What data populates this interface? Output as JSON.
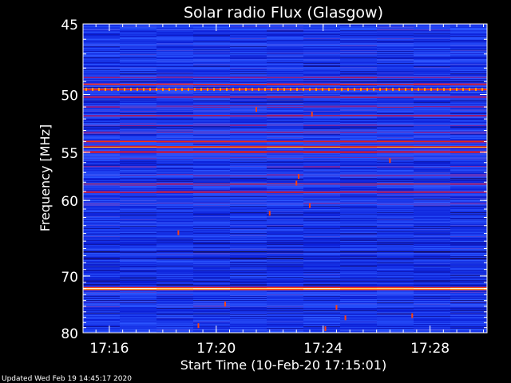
{
  "footer": {
    "updated": "Updated Wed Feb 19 14:45:17 2020"
  },
  "colors": {
    "background": "#000000",
    "text": "#ffffff",
    "axis": "#ffffff",
    "colormap": [
      "#000000",
      "#1a0a4a",
      "#0b1fd8",
      "#2a55ff",
      "#8a1a8c",
      "#c81e2a",
      "#ff3a10",
      "#ffb020",
      "#ffffe8"
    ]
  },
  "chart_data": {
    "type": "heatmap",
    "title": "Solar radio Flux (Glasgow)",
    "xlabel": "Start Time (10-Feb-20 17:15:01)",
    "ylabel": "Frequency [MHz]",
    "y_axis": {
      "ticks": [
        45,
        50,
        55,
        60,
        70,
        80
      ],
      "tick_labels": [
        "45",
        "50",
        "55",
        "60",
        "70",
        "80"
      ],
      "range": [
        45,
        80
      ],
      "scale": "reciprocal",
      "direction": "increasing-downward"
    },
    "x_axis": {
      "tick_labels": [
        "17:16",
        "17:20",
        "17:24",
        "17:28"
      ],
      "ticks": [
        "17:16",
        "17:20",
        "17:24",
        "17:28"
      ],
      "range": [
        "17:15:01",
        "17:30:08"
      ],
      "minor_tick_interval_seconds": 30
    },
    "background_level": 0.3,
    "noise_amplitude": 0.15,
    "bands": [
      {
        "freq": 45.3,
        "level": 0.38
      },
      {
        "freq": 46.6,
        "level": 0.32
      },
      {
        "freq": 48.7,
        "level": 0.55
      },
      {
        "freq": 49.2,
        "level": 0.64
      },
      {
        "freq": 49.6,
        "level": 0.78
      },
      {
        "freq": 50.2,
        "level": 0.62
      },
      {
        "freq": 51.0,
        "level": 0.6
      },
      {
        "freq": 51.7,
        "level": 0.55
      },
      {
        "freq": 52.5,
        "level": 0.47
      },
      {
        "freq": 53.2,
        "level": 0.5
      },
      {
        "freq": 54.0,
        "level": 0.74
      },
      {
        "freq": 54.5,
        "level": 0.86
      },
      {
        "freq": 55.0,
        "level": 0.7
      },
      {
        "freq": 55.6,
        "level": 0.45
      },
      {
        "freq": 56.4,
        "level": 0.4
      },
      {
        "freq": 57.3,
        "level": 0.43
      },
      {
        "freq": 58.2,
        "level": 0.57
      },
      {
        "freq": 59.1,
        "level": 0.55
      },
      {
        "freq": 60.3,
        "level": 0.36
      },
      {
        "freq": 62.0,
        "level": 0.35
      },
      {
        "freq": 64.3,
        "level": 0.4
      },
      {
        "freq": 66.4,
        "level": 0.18
      },
      {
        "freq": 67.4,
        "level": 0.14
      },
      {
        "freq": 68.3,
        "level": 0.22
      },
      {
        "freq": 71.2,
        "level": 0.3
      },
      {
        "freq": 72.0,
        "level": 0.99
      },
      {
        "freq": 72.8,
        "level": 0.4
      },
      {
        "freq": 75.0,
        "level": 0.34
      },
      {
        "freq": 77.5,
        "level": 0.33
      },
      {
        "freq": 79.5,
        "level": 0.3
      }
    ],
    "spikes": [
      {
        "time": "17:21:30",
        "freq": 51.2
      },
      {
        "time": "17:23:35",
        "freq": 51.6
      },
      {
        "time": "17:26:30",
        "freq": 55.8
      },
      {
        "time": "17:23:05",
        "freq": 57.4
      },
      {
        "time": "17:23:00",
        "freq": 58.1
      },
      {
        "time": "17:23:30",
        "freq": 60.6
      },
      {
        "time": "17:18:35",
        "freq": 63.9
      },
      {
        "time": "17:22:00",
        "freq": 61.5
      },
      {
        "time": "17:20:20",
        "freq": 74.6
      },
      {
        "time": "17:24:30",
        "freq": 75.2
      },
      {
        "time": "17:24:50",
        "freq": 77.1
      },
      {
        "time": "17:19:20",
        "freq": 78.6
      },
      {
        "time": "17:27:20",
        "freq": 76.7
      },
      {
        "time": "17:24:05",
        "freq": 79.2
      }
    ]
  }
}
